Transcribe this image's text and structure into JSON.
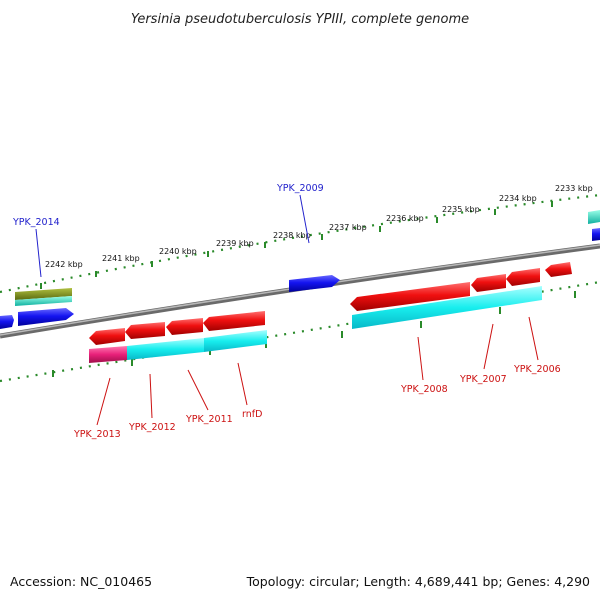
{
  "title": "Yersinia pseudotuberculosis YPIII, complete genome",
  "footer": {
    "accession": "Accession: NC_010465",
    "summary": "Topology: circular; Length: 4,689,441 bp; Genes: 4,290"
  },
  "colors": {
    "backbone": "#8a8a8a",
    "tick": "#2a8a2a",
    "forward_gene": "#1010e8",
    "reverse_gene": "#e81010",
    "cds_cyan": "#18e8e8",
    "rrna_pink": "#e8207a",
    "olive": "#7a8a1a",
    "teal": "#18c8a8",
    "label_blue": "#2222cc",
    "label_red": "#cc1111"
  },
  "kbp_labels": [
    "2233 kbp",
    "2234 kbp",
    "2235 kbp",
    "2236 kbp",
    "2237 kbp",
    "2238 kbp",
    "2239 kbp",
    "2240 kbp",
    "2241 kbp",
    "2242 kbp"
  ],
  "gene_labels_top": [
    "YPK_2014",
    "YPK_2009"
  ],
  "gene_labels_bottom": [
    "YPK_2013",
    "YPK_2012",
    "YPK_2011",
    "rnfD",
    "YPK_2008",
    "YPK_2007",
    "YPK_2006"
  ]
}
